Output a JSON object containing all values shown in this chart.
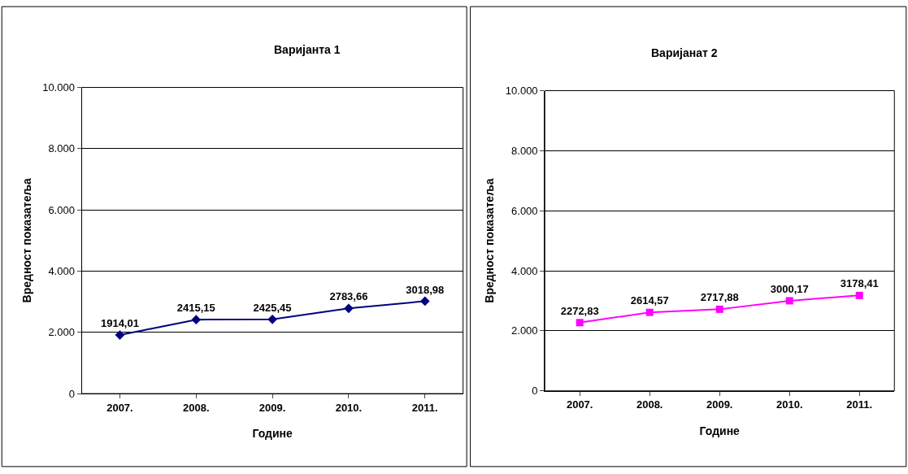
{
  "chart_data": [
    {
      "type": "line",
      "title": "Варијанта 1",
      "xlabel": "Године",
      "ylabel": "Вредност показатеља",
      "categories": [
        "2007.",
        "2008.",
        "2009.",
        "2010.",
        "2011."
      ],
      "series": [
        {
          "color": "#000080",
          "values": [
            1914.01,
            2415.15,
            2425.45,
            2783.66,
            3018.98
          ],
          "value_labels": [
            "1914,01",
            "2415,15",
            "2425,45",
            "2783,66",
            "3018,98"
          ]
        }
      ],
      "ylim": [
        0,
        10000
      ],
      "yticks": [
        0,
        {
          "value": 2000,
          "label": "2.000"
        },
        {
          "value": 4000,
          "label": "4.000"
        },
        {
          "value": 6000,
          "label": "6.000"
        },
        {
          "value": 8000,
          "label": "8.000"
        },
        {
          "value": 10000,
          "label": "10.000"
        }
      ],
      "grid": "y",
      "marker": "diamond",
      "line_style": "solid"
    },
    {
      "type": "line",
      "title": "Варијанат 2",
      "xlabel": "Године",
      "ylabel": "Вредност показатеља",
      "categories": [
        "2007.",
        "2008.",
        "2009.",
        "2010.",
        "2011."
      ],
      "series": [
        {
          "color": "#ff00ff",
          "values": [
            2272.83,
            2614.57,
            2717.88,
            3000.17,
            3178.41
          ],
          "value_labels": [
            "2272,83",
            "2614,57",
            "2717,88",
            "3000,17",
            "3178,41"
          ]
        }
      ],
      "ylim": [
        0,
        10000
      ],
      "yticks": [
        0,
        {
          "value": 2000,
          "label": "2.000"
        },
        {
          "value": 4000,
          "label": "4.000"
        },
        {
          "value": 6000,
          "label": "6.000"
        },
        {
          "value": 8000,
          "label": "8.000"
        },
        {
          "value": 10000,
          "label": "10.000"
        }
      ],
      "grid": "y",
      "marker": "square",
      "line_style": "solid"
    }
  ]
}
